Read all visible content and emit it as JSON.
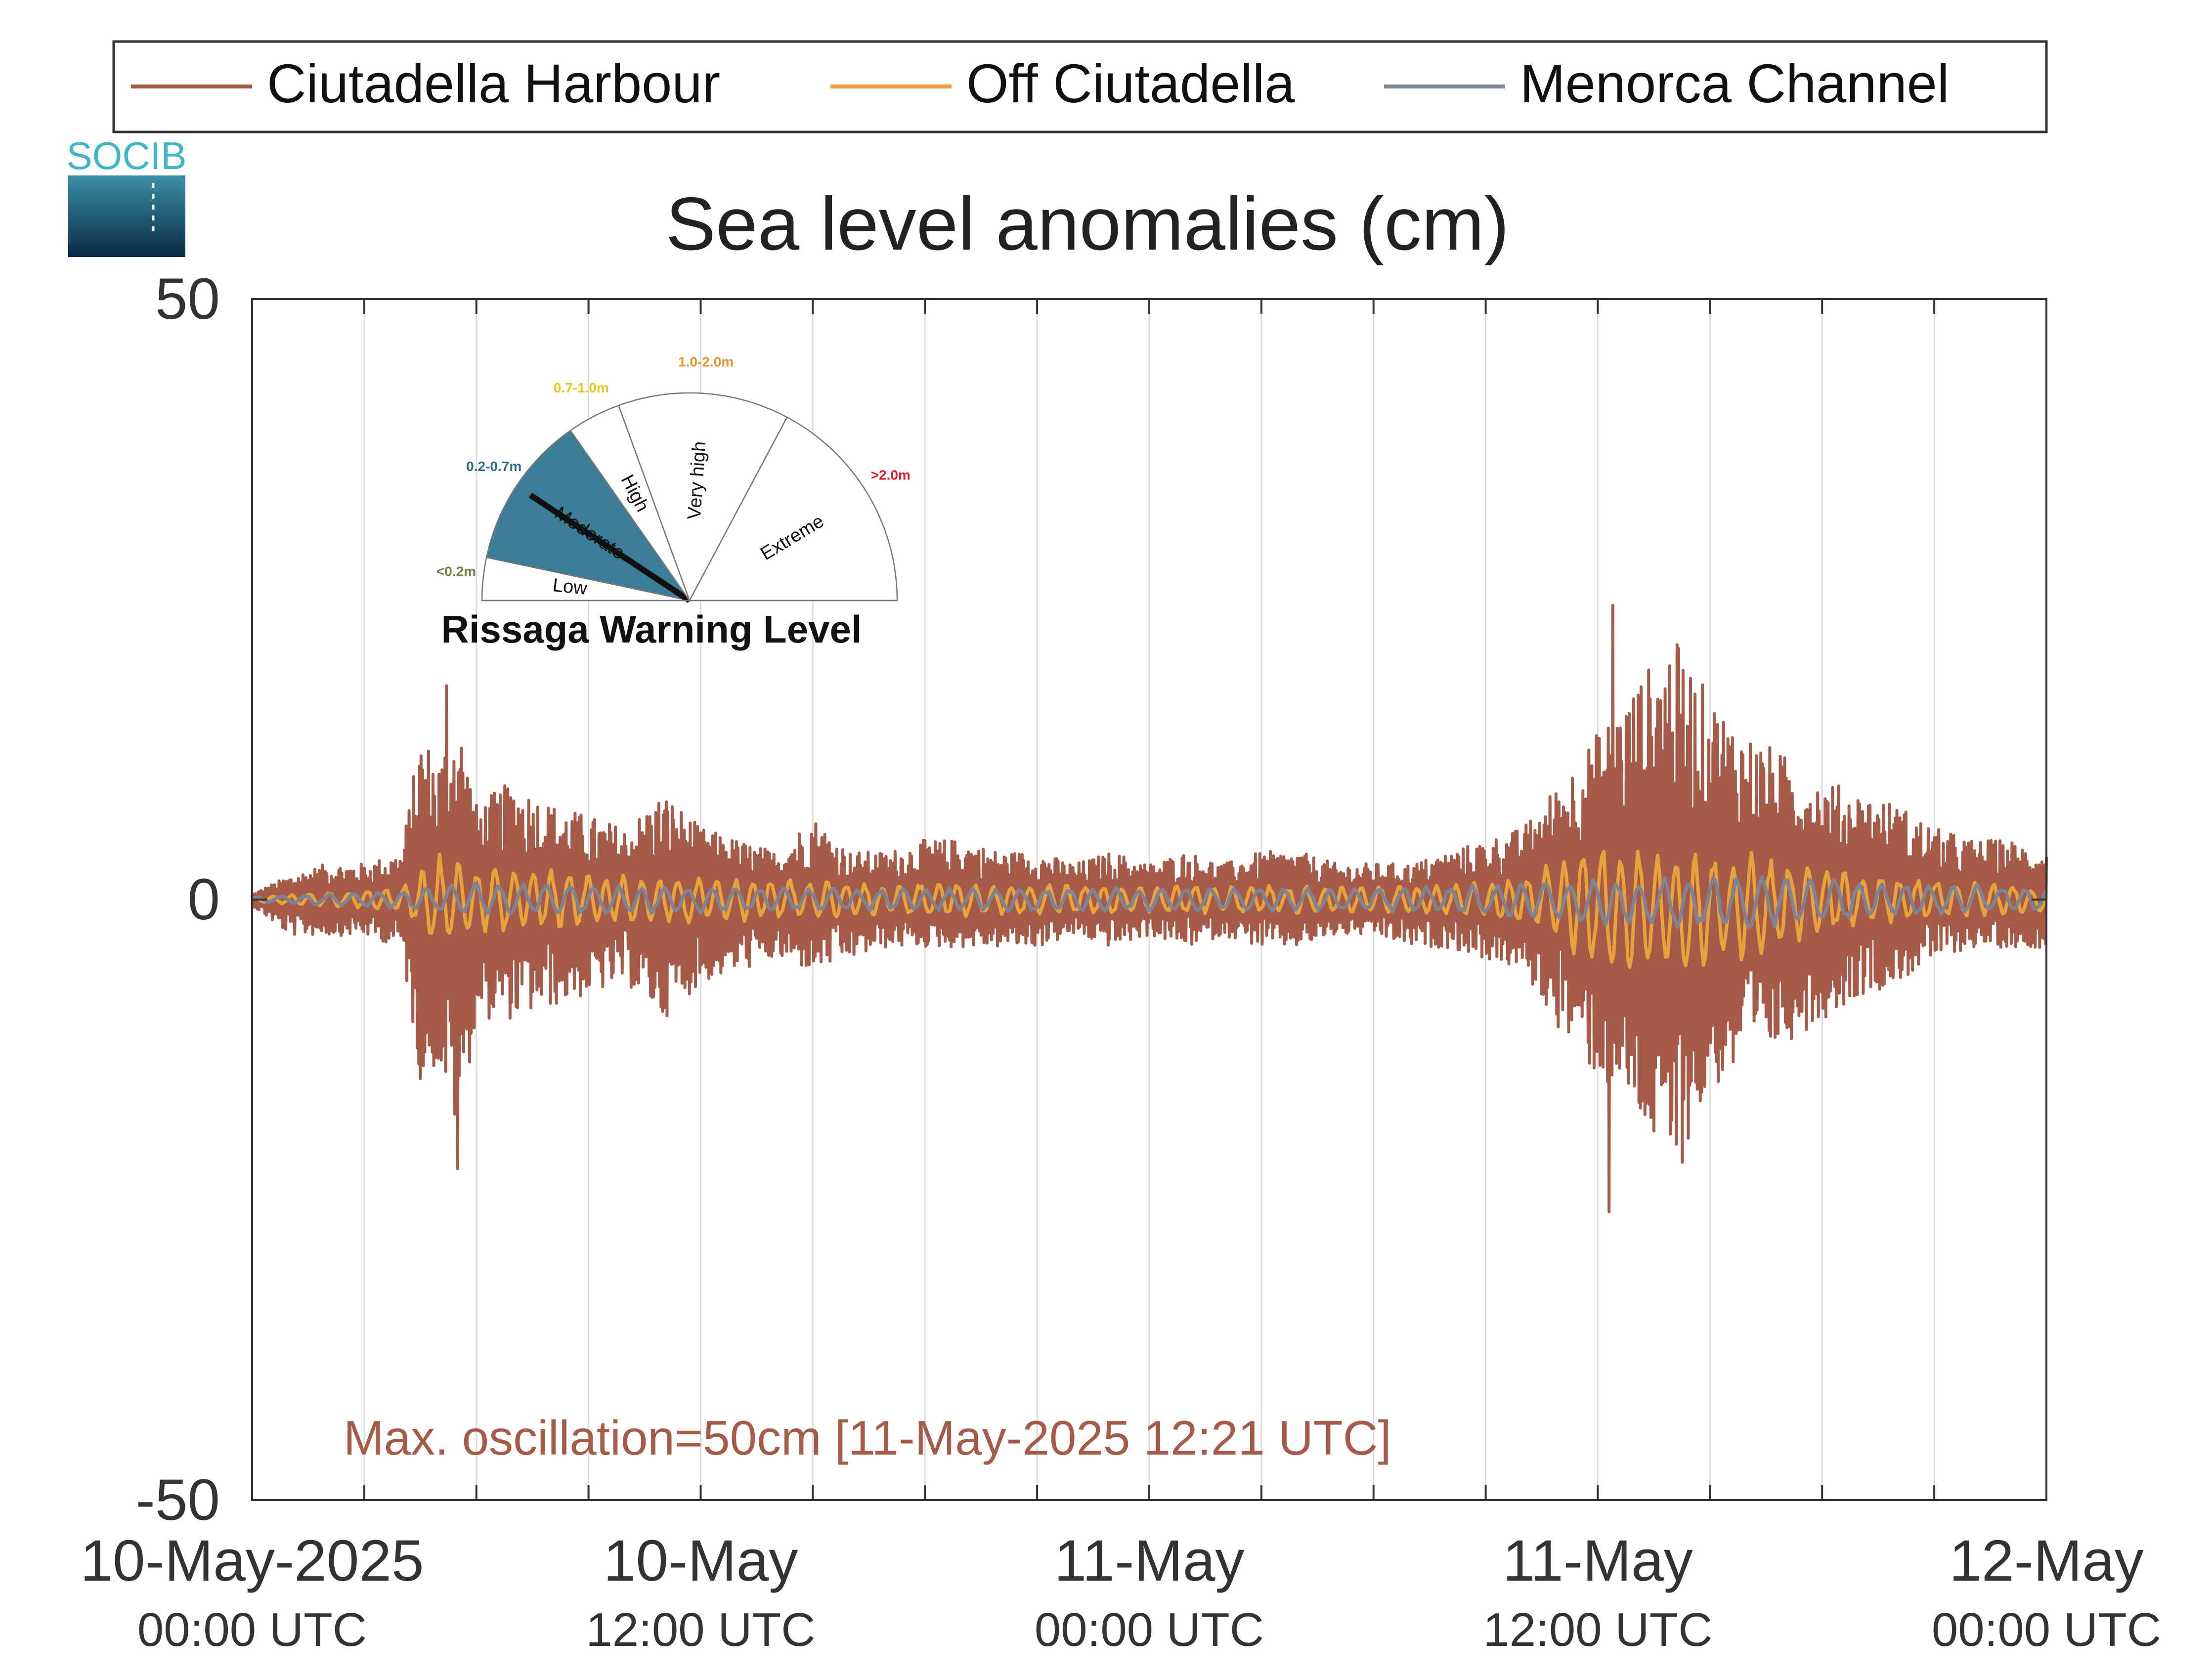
{
  "chart_data": {
    "type": "line",
    "title": "Sea level anomalies (cm)",
    "ylabel": "",
    "xlabel": "",
    "ylim": [
      -50,
      50
    ],
    "yticks": [
      -50,
      0,
      50
    ],
    "xlim": [
      "2025-05-10 00:00",
      "2025-05-12 00:00"
    ],
    "x_unit": "hours after 10-May-2025 00:00 UTC",
    "x_range_hours": [
      0,
      48
    ],
    "minor_ticks_every_hours": 3,
    "major_tick_hours": [
      0,
      12,
      24,
      36,
      48
    ],
    "xtick_labels": [
      {
        "hours": 0,
        "line1": "10-May-2025",
        "line2": "00:00 UTC"
      },
      {
        "hours": 12,
        "line1": "10-May",
        "line2": "12:00 UTC"
      },
      {
        "hours": 24,
        "line1": "11-May",
        "line2": "00:00 UTC"
      },
      {
        "hours": 36,
        "line1": "11-May",
        "line2": "12:00 UTC"
      },
      {
        "hours": 48,
        "line1": "12-May",
        "line2": "00:00 UTC"
      }
    ],
    "grid": "vertical",
    "legend_position": "top",
    "series": [
      {
        "name": "Ciutadella Harbour",
        "color": "#a65a48",
        "envelope": {
          "hours": [
            0,
            1,
            2,
            3,
            4,
            4.5,
            5,
            5.5,
            6,
            7,
            8,
            9,
            10,
            11,
            12,
            13,
            14,
            15,
            16,
            17,
            18,
            19,
            20,
            21,
            22,
            23,
            24,
            25,
            26,
            27,
            28,
            29,
            30,
            31,
            32,
            33,
            34,
            35,
            36,
            37,
            38,
            39,
            40,
            41,
            42,
            43,
            44,
            45,
            46,
            47,
            48
          ],
          "upper": [
            0.5,
            2,
            3,
            3,
            4,
            14,
            12,
            16,
            8,
            10,
            8,
            7,
            6,
            9,
            6,
            5,
            4,
            7,
            4,
            4,
            5,
            5,
            4,
            4,
            3,
            4,
            3,
            4,
            3,
            4,
            4,
            3,
            3,
            3,
            4,
            5,
            6,
            10,
            14,
            18,
            22,
            17,
            14,
            12,
            10,
            9,
            8,
            6,
            5,
            5,
            4
          ],
          "lower": [
            -0.5,
            -3,
            -3,
            -3,
            -4,
            -15,
            -14,
            -20,
            -10,
            -10,
            -9,
            -8,
            -7,
            -10,
            -7,
            -6,
            -5,
            -6,
            -5,
            -4,
            -4,
            -4,
            -4,
            -4,
            -3,
            -4,
            -3,
            -4,
            -3,
            -4,
            -4,
            -3,
            -3,
            -4,
            -4,
            -5,
            -6,
            -11,
            -15,
            -18,
            -24,
            -16,
            -14,
            -12,
            -10,
            -8,
            -7,
            -5,
            -4,
            -4,
            -4
          ]
        },
        "extremes": [
          {
            "hours": 5.2,
            "value": 17.8
          },
          {
            "hours": 5.5,
            "value": -22.4
          },
          {
            "hours": 36.4,
            "value": 24.5
          },
          {
            "hours": 36.3,
            "value": -26.0
          }
        ]
      },
      {
        "name": "Off Ciutadella",
        "color": "#e8a23c",
        "envelope": {
          "hours": [
            0,
            4,
            5,
            6,
            8,
            10,
            12,
            16,
            20,
            24,
            28,
            32,
            34,
            36,
            38,
            40,
            42,
            44,
            46,
            48
          ],
          "upper": [
            0.2,
            1,
            4,
            3,
            2.5,
            2,
            2,
            1.5,
            1.5,
            1.2,
            1.2,
            1.2,
            2,
            5,
            5,
            4,
            3,
            2,
            1.5,
            1
          ],
          "lower": [
            -0.2,
            -1,
            -4,
            -3,
            -2.5,
            -2,
            -2,
            -1.5,
            -1.5,
            -1.2,
            -1.2,
            -1.2,
            -2,
            -6,
            -7,
            -5,
            -3,
            -2,
            -1.5,
            -1
          ]
        },
        "extremes": []
      },
      {
        "name": "Menorca Channel",
        "color": "#7f8494",
        "envelope": {
          "hours": [
            0,
            4,
            6,
            10,
            16,
            24,
            30,
            34,
            36,
            40,
            44,
            48
          ],
          "upper": [
            0.2,
            0.8,
            1.5,
            1.2,
            1,
            1,
            1,
            1.5,
            1.8,
            2,
            1.5,
            1
          ],
          "lower": [
            -0.2,
            -0.8,
            -1.5,
            -1.2,
            -1,
            -1,
            -1,
            -1.5,
            -2.2,
            -2.5,
            -1.5,
            -1
          ]
        },
        "extremes": []
      }
    ],
    "annotation": {
      "text": "Max. oscillation=50cm [11-May-2025 12:21 UTC]",
      "color": "#a65a48"
    }
  },
  "logo": {
    "text": "SOCIB",
    "colors": {
      "text": "#3fb7c8",
      "top": "#3a8ea6",
      "bottom": "#0a2a45"
    }
  },
  "gauge": {
    "title": "Rissaga Warning Level",
    "active_level": "Moderate",
    "levels": [
      {
        "name": "Low",
        "range": "<0.2m",
        "color": "#7a7a4a",
        "fill": "#ffffff"
      },
      {
        "name": "Moderate",
        "range": "0.2-0.7m",
        "color": "#2f6d87",
        "fill": "#3b7d96"
      },
      {
        "name": "High",
        "range": "0.7-1.0m",
        "color": "#e3c81a",
        "fill": "#ffffff"
      },
      {
        "name": "Very high",
        "range": "1.0-2.0m",
        "color": "#e8962a",
        "fill": "#ffffff"
      },
      {
        "name": "Extreme",
        "range": ">2.0m",
        "color": "#d81e2a",
        "fill": "#ffffff"
      }
    ]
  }
}
